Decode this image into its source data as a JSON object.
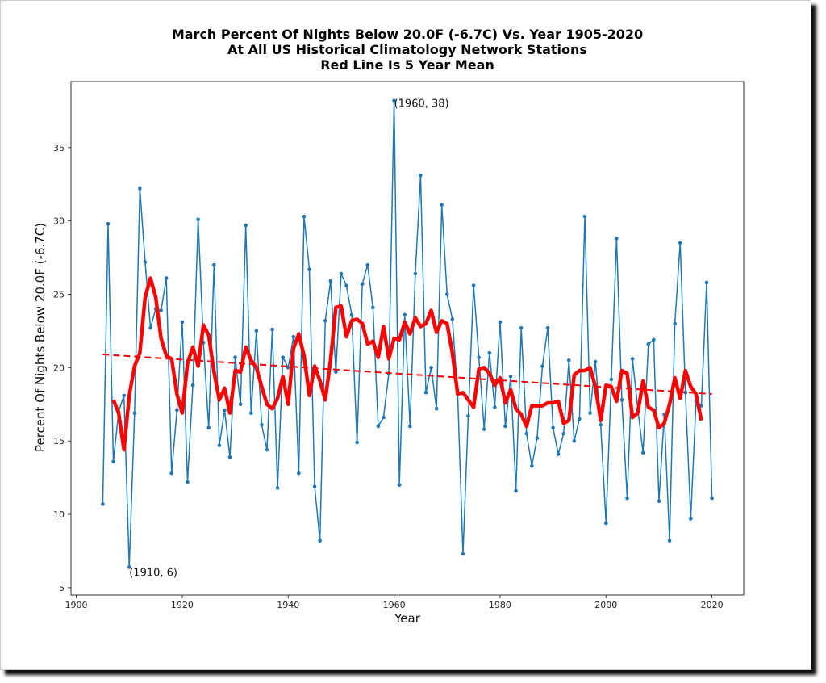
{
  "chart_data": {
    "type": "line",
    "title": [
      "March Percent Of Nights Below 20.0F (-6.7C) Vs. Year 1905-2020",
      "At All US Historical Climatology Network Stations",
      "Red Line Is 5 Year Mean"
    ],
    "xlabel": "Year",
    "ylabel": "Percent Of Nights Below 20.0F (-6.7C)",
    "xlim": [
      1899,
      2026
    ],
    "ylim": [
      4.5,
      39.5
    ],
    "xticks": [
      1900,
      1920,
      1940,
      1960,
      1980,
      2000,
      2020
    ],
    "yticks": [
      5,
      10,
      15,
      20,
      25,
      30,
      35
    ],
    "annotations": [
      {
        "x": 1960,
        "y": 38,
        "text": "(1960, 38)"
      },
      {
        "x": 1910,
        "y": 6,
        "text": "(1910, 6)"
      }
    ],
    "series": [
      {
        "name": "annual",
        "color": "#1f77b4",
        "x": [
          1905,
          1906,
          1907,
          1908,
          1909,
          1910,
          1911,
          1912,
          1913,
          1914,
          1915,
          1916,
          1917,
          1918,
          1919,
          1920,
          1921,
          1922,
          1923,
          1924,
          1925,
          1926,
          1927,
          1928,
          1929,
          1930,
          1931,
          1932,
          1933,
          1934,
          1935,
          1936,
          1937,
          1938,
          1939,
          1940,
          1941,
          1942,
          1943,
          1944,
          1945,
          1946,
          1947,
          1948,
          1949,
          1950,
          1951,
          1952,
          1953,
          1954,
          1955,
          1956,
          1957,
          1958,
          1959,
          1960,
          1961,
          1962,
          1963,
          1964,
          1965,
          1966,
          1967,
          1968,
          1969,
          1970,
          1971,
          1972,
          1973,
          1974,
          1975,
          1976,
          1977,
          1978,
          1979,
          1980,
          1981,
          1982,
          1983,
          1984,
          1985,
          1986,
          1987,
          1988,
          1989,
          1990,
          1991,
          1992,
          1993,
          1994,
          1995,
          1996,
          1997,
          1998,
          1999,
          2000,
          2001,
          2002,
          2003,
          2004,
          2005,
          2006,
          2007,
          2008,
          2009,
          2010,
          2011,
          2012,
          2013,
          2014,
          2015,
          2016,
          2017,
          2018,
          2019,
          2020
        ],
        "values": [
          10.7,
          29.8,
          13.6,
          17.0,
          18.1,
          6.4,
          16.9,
          32.2,
          27.2,
          22.7,
          24.0,
          23.9,
          26.1,
          12.8,
          17.1,
          23.1,
          12.2,
          18.8,
          30.1,
          21.7,
          15.9,
          27.0,
          14.7,
          17.1,
          13.9,
          20.7,
          17.5,
          29.7,
          16.9,
          22.5,
          16.1,
          14.4,
          22.6,
          11.8,
          20.7,
          20.0,
          22.1,
          12.8,
          30.3,
          26.7,
          11.9,
          8.2,
          23.2,
          25.9,
          19.7,
          26.4,
          25.6,
          23.6,
          14.9,
          25.7,
          27.0,
          24.1,
          16.0,
          16.6,
          19.6,
          38.2,
          12.0,
          23.6,
          16.0,
          26.4,
          33.1,
          18.3,
          20.0,
          17.2,
          31.1,
          25.0,
          23.3,
          18.2,
          7.3,
          16.7,
          25.6,
          20.7,
          15.8,
          21.0,
          17.3,
          23.1,
          16.0,
          19.4,
          11.6,
          22.7,
          15.5,
          13.3,
          15.2,
          20.1,
          22.7,
          15.9,
          14.1,
          15.5,
          20.5,
          15.0,
          16.5,
          30.3,
          16.9,
          20.4,
          16.1,
          9.4,
          19.2,
          28.8,
          17.8,
          11.1,
          20.6,
          17.2,
          14.2,
          21.6,
          21.9,
          10.9,
          16.8,
          8.2,
          23.0,
          28.5,
          18.3,
          9.7,
          17.7,
          17.4,
          25.8,
          11.1
        ]
      },
      {
        "name": "5 year mean",
        "color": "#ff0000",
        "x": [
          1907,
          1908,
          1909,
          1910,
          1911,
          1912,
          1913,
          1914,
          1915,
          1916,
          1917,
          1918,
          1919,
          1920,
          1921,
          1922,
          1923,
          1924,
          1925,
          1926,
          1927,
          1928,
          1929,
          1930,
          1931,
          1932,
          1933,
          1934,
          1935,
          1936,
          1937,
          1938,
          1939,
          1940,
          1941,
          1942,
          1943,
          1944,
          1945,
          1946,
          1947,
          1948,
          1949,
          1950,
          1951,
          1952,
          1953,
          1954,
          1955,
          1956,
          1957,
          1958,
          1959,
          1960,
          1961,
          1962,
          1963,
          1964,
          1965,
          1966,
          1967,
          1968,
          1969,
          1970,
          1971,
          1972,
          1973,
          1974,
          1975,
          1976,
          1977,
          1978,
          1979,
          1980,
          1981,
          1982,
          1983,
          1984,
          1985,
          1986,
          1987,
          1988,
          1989,
          1990,
          1991,
          1992,
          1993,
          1994,
          1995,
          1996,
          1997,
          1998,
          1999,
          2000,
          2001,
          2002,
          2003,
          2004,
          2005,
          2006,
          2007,
          2008,
          2009,
          2010,
          2011,
          2012,
          2013,
          2014,
          2015,
          2016,
          2017,
          2018
        ],
        "values": [
          17.8,
          16.9,
          14.4,
          18.1,
          20.1,
          21.0,
          24.8,
          26.1,
          24.8,
          22.0,
          20.8,
          20.6,
          18.2,
          16.9,
          20.3,
          21.4,
          20.1,
          22.9,
          22.2,
          19.7,
          17.8,
          18.6,
          16.9,
          19.8,
          19.7,
          21.4,
          20.5,
          20.0,
          18.7,
          17.5,
          17.2,
          17.9,
          19.4,
          17.5,
          21.3,
          22.3,
          20.8,
          18.1,
          20.1,
          19.1,
          17.8,
          20.5,
          24.1,
          24.2,
          22.1,
          23.2,
          23.3,
          23.0,
          21.6,
          21.8,
          20.7,
          22.8,
          20.6,
          22.0,
          21.9,
          23.1,
          22.3,
          23.4,
          22.8,
          23.0,
          23.9,
          22.4,
          23.2,
          23.0,
          21.0,
          18.2,
          18.3,
          17.8,
          17.3,
          19.9,
          20.0,
          19.6,
          18.8,
          19.3,
          17.6,
          18.5,
          17.2,
          16.8,
          16.0,
          17.4,
          17.4,
          17.4,
          17.6,
          17.6,
          17.7,
          16.2,
          16.4,
          19.5,
          19.8,
          19.8,
          20.0,
          18.7,
          16.4,
          18.8,
          18.7,
          17.7,
          19.8,
          19.6,
          16.6,
          16.9,
          19.1,
          17.3,
          17.1,
          15.9,
          16.2,
          17.5,
          19.3,
          17.9,
          19.8,
          18.7,
          18.2,
          16.4
        ]
      },
      {
        "name": "trend",
        "color": "#ff0000",
        "style": "dashed",
        "x": [
          1905,
          2020
        ],
        "values": [
          20.9,
          18.2
        ]
      }
    ]
  }
}
